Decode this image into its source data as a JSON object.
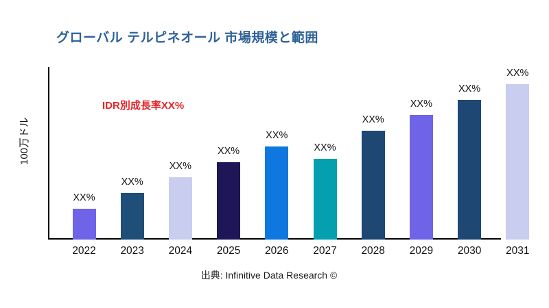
{
  "page": {
    "background": "#FFFFFF"
  },
  "chart_data": {
    "type": "bar",
    "title": "グローバル テルピネオール 市場規模と範囲",
    "title_color": "#2D6197",
    "ylabel": "100万ドル",
    "xlabel": "",
    "annotation": {
      "text": "IDR別成長率XX%",
      "color": "#E5262B"
    },
    "source": "出典: Infinitive Data Research ©",
    "categories": [
      "2022",
      "2023",
      "2024",
      "2025",
      "2026",
      "2027",
      "2028",
      "2029",
      "2030",
      "2031"
    ],
    "value_labels": [
      "XX%",
      "XX%",
      "XX%",
      "XX%",
      "XX%",
      "XX%",
      "XX%",
      "XX%",
      "XX%",
      "XX%"
    ],
    "values_relative_pct_of_max": [
      20,
      30,
      40,
      50,
      60,
      52,
      70,
      80,
      90,
      100
    ],
    "bar_colors": [
      "#6F63E8",
      "#1F4E79",
      "#C9CDF0",
      "#1E1656",
      "#0E78E0",
      "#05A0B0",
      "#1F4773",
      "#6F63E8",
      "#1F4773",
      "#C9CDF0"
    ],
    "axis_color": "#000000",
    "grid": false,
    "legend": false
  }
}
